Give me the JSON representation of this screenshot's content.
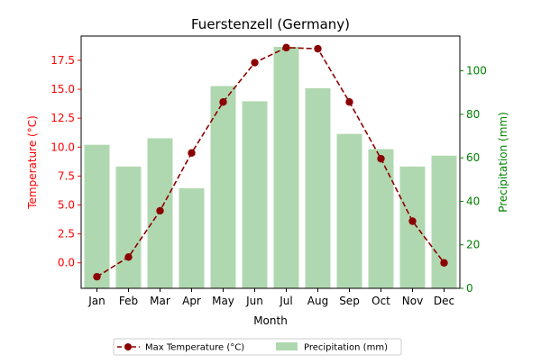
{
  "chart_data": {
    "type": "bar+line",
    "title": "Fuerstenzell (Germany)",
    "xlabel": "Month",
    "categories": [
      "Jan",
      "Feb",
      "Mar",
      "Apr",
      "May",
      "Jun",
      "Jul",
      "Aug",
      "Sep",
      "Oct",
      "Nov",
      "Dec"
    ],
    "left_axis": {
      "label": "Temperature (°C)",
      "color": "#ff0000",
      "ylim": [
        -2.2,
        19.6
      ],
      "ticks": [
        0.0,
        2.5,
        5.0,
        7.5,
        10.0,
        12.5,
        15.0,
        17.5
      ],
      "tick_labels": [
        "0.0",
        "2.5",
        "5.0",
        "7.5",
        "10.0",
        "12.5",
        "15.0",
        "17.5"
      ]
    },
    "right_axis": {
      "label": "Precipitation (mm)",
      "color": "#008000",
      "ylim": [
        0,
        116
      ],
      "ticks": [
        0,
        20,
        40,
        60,
        80,
        100
      ],
      "tick_labels": [
        "0",
        "20",
        "40",
        "60",
        "80",
        "100"
      ]
    },
    "series": [
      {
        "name": "Max Temperature (°C)",
        "type": "line",
        "axis": "left",
        "color": "#8b0000",
        "line_style": "dashed",
        "marker": "circle",
        "values": [
          -1.2,
          0.5,
          4.5,
          9.5,
          13.9,
          17.3,
          18.6,
          18.5,
          13.9,
          9.0,
          3.6,
          0.0
        ]
      },
      {
        "name": "Precipitation (mm)",
        "type": "bar",
        "axis": "right",
        "color": "#b0d8b0",
        "values": [
          66,
          56,
          69,
          46,
          93,
          86,
          111,
          92,
          71,
          64,
          56,
          61
        ]
      }
    ],
    "legend": "bottom-center"
  }
}
